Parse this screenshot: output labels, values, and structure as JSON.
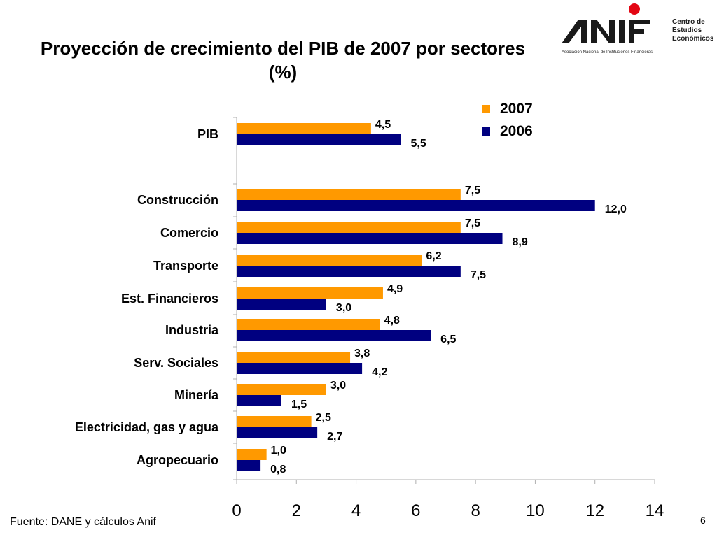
{
  "header": {
    "title_line1": "Proyección de crecimiento del PIB de 2007 por sectores",
    "title_line2": "(%)"
  },
  "logo": {
    "wordmark": "ANIF",
    "subtitle": "Asociación Nacional de Instituciones Financieras",
    "side_text": [
      "Centro de",
      "Estudios",
      "Económicos"
    ],
    "dot_color": "#e30613"
  },
  "chart_data": {
    "type": "bar",
    "orientation": "horizontal",
    "categories": [
      "PIB",
      "Construcción",
      "Comercio",
      "Transporte",
      "Est. Financieros",
      "Industria",
      "Serv. Sociales",
      "Minería",
      "Electricidad, gas y agua",
      "Agropecuario"
    ],
    "series": [
      {
        "name": "2007",
        "color": "#ff9900",
        "values": [
          4.5,
          7.5,
          7.5,
          6.2,
          4.9,
          4.8,
          3.8,
          3.0,
          2.5,
          1.0
        ],
        "labels": [
          "4,5",
          "7,5",
          "7,5",
          "6,2",
          "4,9",
          "4,8",
          "3,8",
          "3,0",
          "2,5",
          "1,0"
        ]
      },
      {
        "name": "2006",
        "color": "#000080",
        "values": [
          5.5,
          12.0,
          8.9,
          7.5,
          3.0,
          6.5,
          4.2,
          1.5,
          2.7,
          0.8
        ],
        "labels": [
          "5,5",
          "12,0",
          "8,9",
          "7,5",
          "3,0",
          "6,5",
          "4,2",
          "1,5",
          "2,7",
          "0,8"
        ]
      }
    ],
    "xlim": [
      0,
      14
    ],
    "xticks": [
      "0",
      "2",
      "4",
      "6",
      "8",
      "10",
      "12",
      "14"
    ],
    "grid": false,
    "legend_position": "top-right"
  },
  "footer": {
    "source": "Fuente: DANE y cálculos Anif",
    "page_number": "6"
  }
}
